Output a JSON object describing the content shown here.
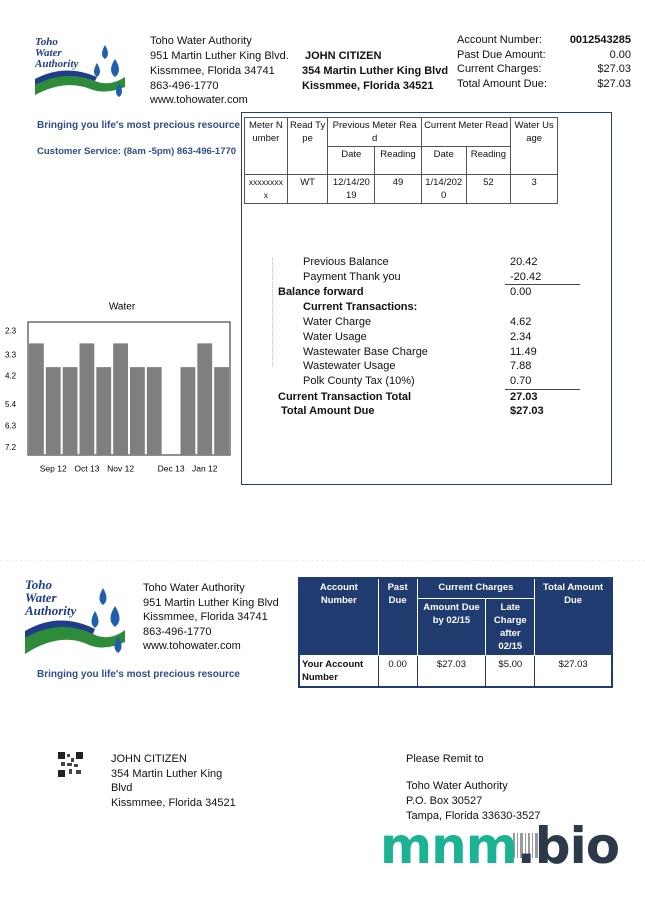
{
  "header": {
    "logo": [
      "Toho",
      "Water",
      "Authority"
    ],
    "company": [
      "Toho Water Authority",
      "951 Martin Luther King Blvd.",
      "Kissmmee, Florida 34741",
      "863-496-1770",
      "www.tohowater.com"
    ],
    "customer": [
      "JOHN CITIZEN",
      "354 Martin Luther King Blvd",
      "Kissmmee, Florida  34521"
    ],
    "account": [
      [
        "Account Number:",
        "0012543285"
      ],
      [
        "Past Due Amount:",
        "0.00"
      ],
      [
        "Current Charges:",
        "$27.03"
      ],
      [
        "Total Amount Due:",
        "$27.03"
      ]
    ],
    "tagline": "Bringing you life's most precious resource",
    "customer_service": "Customer Service: (8am -5pm) 863-496-1770"
  },
  "meter_table": {
    "headers": [
      "Meter Number",
      "Read Type",
      "Previous Meter Read",
      "Current Meter Read",
      "Water Usage"
    ],
    "subheaders": [
      "Date",
      "Reading",
      "Date",
      "Reading"
    ],
    "row": [
      "xxxxxxxxx",
      "WT",
      "12/14/2019",
      "49",
      "1/14/2020",
      "52",
      "3"
    ]
  },
  "transactions": [
    {
      "label": "Previous Balance",
      "amount": "20.42"
    },
    {
      "label": "Payment Thank you",
      "amount": "-20.42"
    },
    {
      "label": "Balance forward",
      "amount": "0.00"
    },
    {
      "label": "Current Transactions:"
    },
    {
      "label": "Water Charge",
      "amount": "4.62"
    },
    {
      "label": "Water Usage",
      "amount": "2.34"
    },
    {
      "label": "Wastewater Base Charge",
      "amount": "11.49"
    },
    {
      "label": "Wastewater Usage",
      "amount": "7.88"
    },
    {
      "label": "Polk County Tax (10%)",
      "amount": "0.70"
    },
    {
      "label": "Current Transaction Total",
      "amount": "27.03"
    },
    {
      "label": "Total Amount Due",
      "amount": "$27.03"
    }
  ],
  "chart_data": {
    "type": "bar",
    "title": "Water",
    "categories": [
      null,
      "Sep 12",
      null,
      "Oct 13",
      null,
      "Nov 12",
      null,
      null,
      "Dec 13",
      null,
      "Jan 12",
      null
    ],
    "values": [
      2.8,
      3.8,
      3.8,
      2.8,
      3.8,
      2.8,
      3.8,
      3.8,
      null,
      3.8,
      2.8,
      3.8
    ],
    "color": "#7f7f7f",
    "ylim": [
      7.5,
      1.9
    ],
    "yticks": [
      2.3,
      3.3,
      4.2,
      5.4,
      6.3,
      7.2
    ]
  },
  "stub": {
    "logo": [
      "Toho",
      "Water",
      "Authority"
    ],
    "company": [
      "Toho Water Authority",
      "951 Martin Luther King Blvd",
      "Kissmmee, Florida 34741",
      "863-496-1770",
      "www.tohowater.com"
    ],
    "tagline": "Bringing you life's most precious resource",
    "table": {
      "headers": [
        "Account Number",
        "Past Due",
        "Current Charges",
        "Total Amount Due"
      ],
      "subheaders": [
        "Amount Due by 02/15",
        "Late Charge after 02/15"
      ],
      "row": [
        "Your Account Number",
        "0.00",
        "$27.03",
        "$5.00",
        "$27.03"
      ]
    }
  },
  "mailing": {
    "customer": [
      "JOHN CITIZEN",
      "354 Martin Luther King",
      "Blvd",
      "Kissmmee, Florida  34521"
    ],
    "remit_title": "Please Remit to",
    "remit": [
      "Toho Water Authority",
      "P.O. Box 30527",
      "Tampa, Florida  33630-3527"
    ]
  },
  "watermark": [
    "mnm",
    ".bio"
  ]
}
